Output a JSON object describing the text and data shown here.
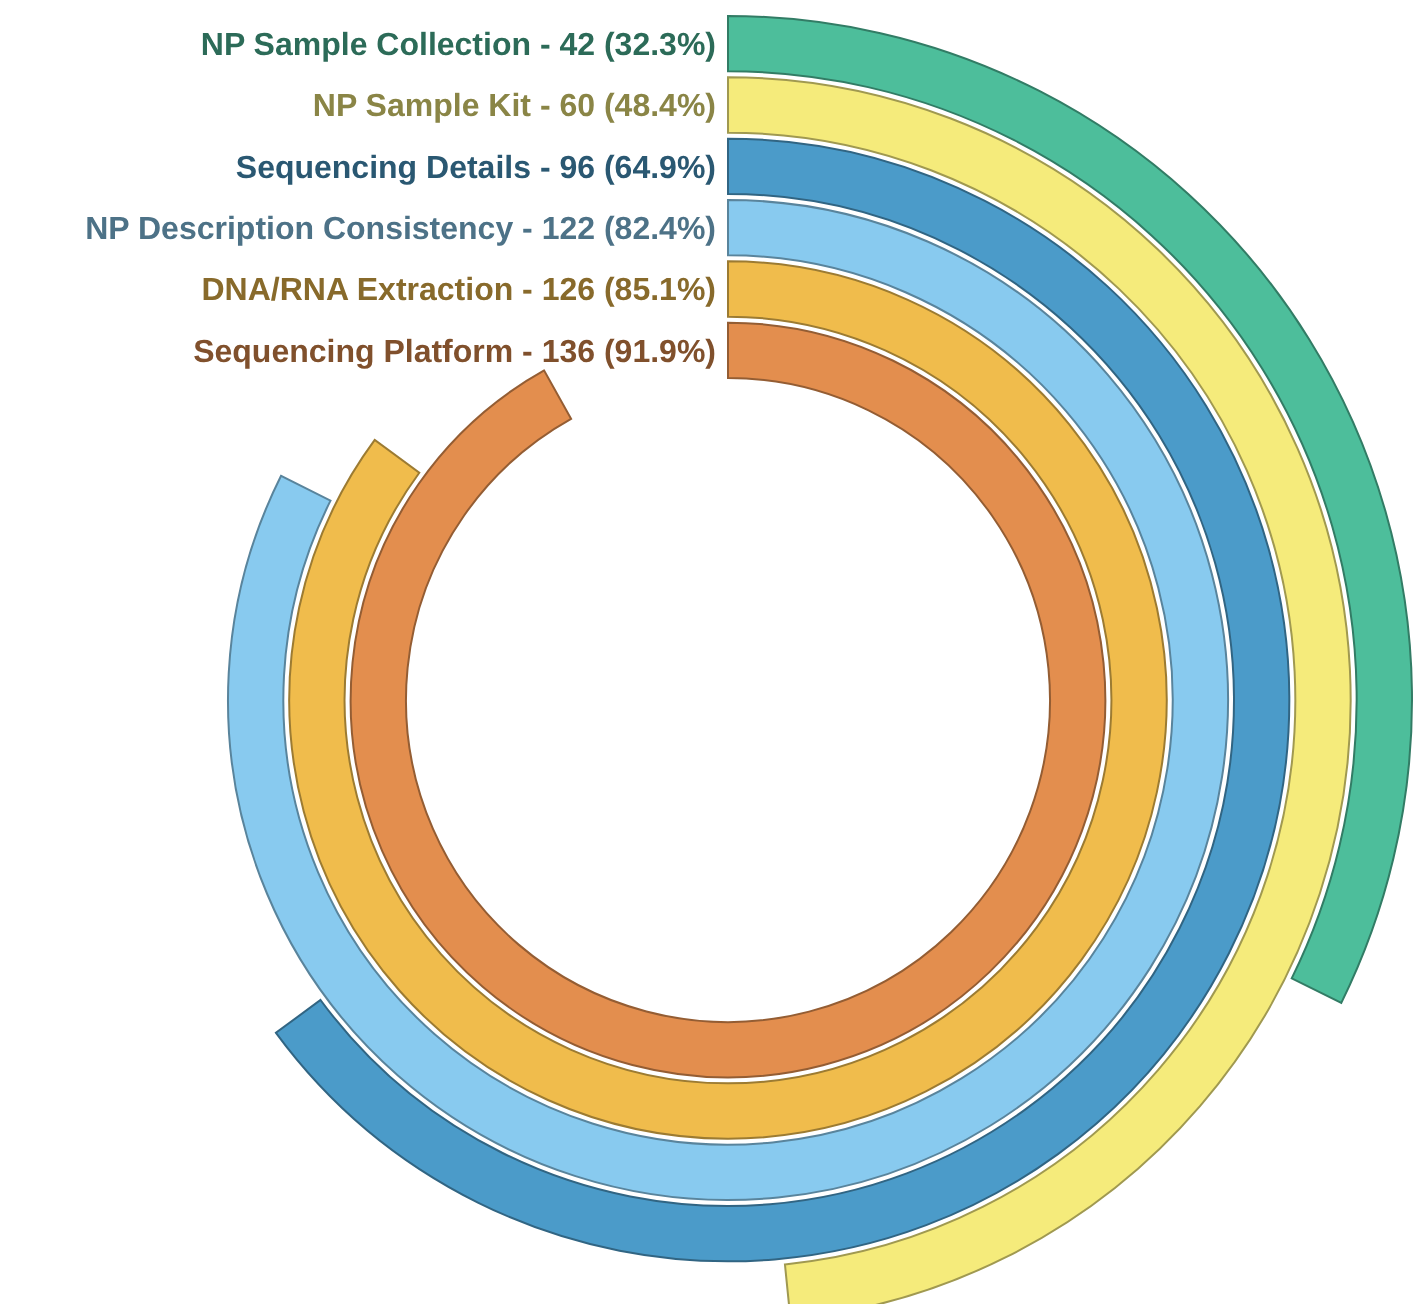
{
  "chart_data": {
    "type": "other",
    "categories": [
      "NP Sample Collection",
      "NP Sample Kit",
      "Sequencing Details",
      "NP Description Consistency",
      "DNA/RNA Extraction",
      "Sequencing Platform"
    ],
    "values": [
      32.3,
      48.4,
      64.9,
      82.4,
      85.1,
      91.9
    ],
    "value_labels": [
      "- 42 (32.3%)",
      "- 60 (48.4%)",
      "- 96 (64.9%)",
      "- 122 (82.4%)",
      "- 126 (85.1%)",
      "- 136 (91.9%)"
    ],
    "colors": [
      "#4dbe9b",
      "#f5eb7b",
      "#4b9bc9",
      "#88caef",
      "#f0bc4c",
      "#e38e4e"
    ]
  }
}
